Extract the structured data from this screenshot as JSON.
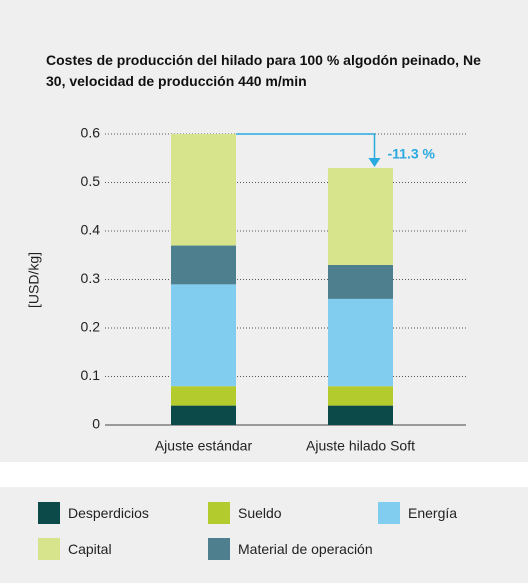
{
  "chart_data": {
    "type": "stacked_bar",
    "title": "Costes de producción del hilado para 100 % algodón peinado, Ne 30, velocidad de producción 440 m/min",
    "ylabel": "[USD/kg]",
    "categories": [
      "Ajuste estándar",
      "Ajuste hilado Soft"
    ],
    "series": [
      {
        "name": "Desperdicios",
        "color": "#0c4a4a",
        "values": [
          0.04,
          0.04
        ]
      },
      {
        "name": "Sueldo",
        "color": "#b4cb2d",
        "values": [
          0.04,
          0.04
        ]
      },
      {
        "name": "Energía",
        "color": "#80cdef",
        "values": [
          0.21,
          0.18
        ]
      },
      {
        "name": "Material de operación",
        "color": "#4e7f8e",
        "values": [
          0.08,
          0.07
        ]
      },
      {
        "name": "Capital",
        "color": "#d7e48b",
        "values": [
          0.23,
          0.2
        ]
      }
    ],
    "annotation": "-11.3 %",
    "ylim": [
      0,
      0.6
    ],
    "yticks": [
      0,
      0.1,
      0.2,
      0.3,
      0.4,
      0.5,
      0.6
    ],
    "grid": true
  }
}
